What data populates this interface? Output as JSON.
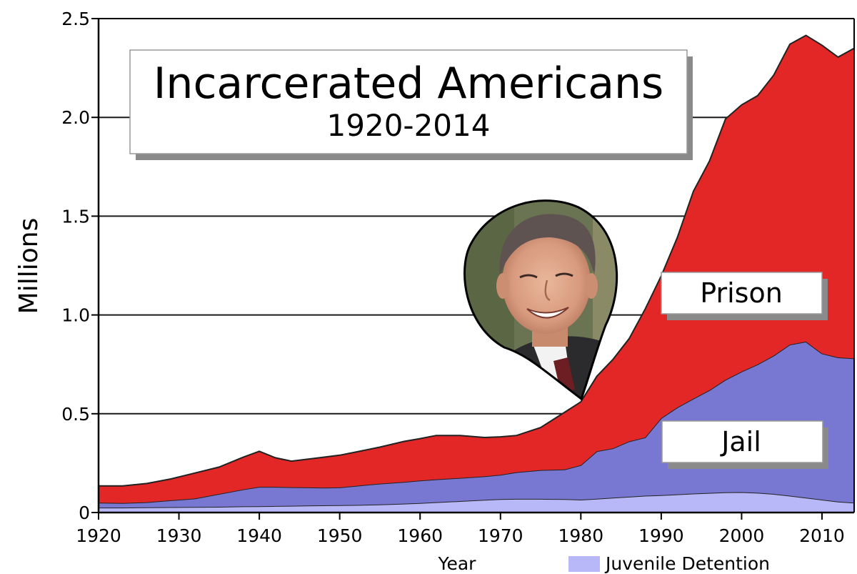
{
  "chart_data": {
    "type": "area",
    "stacked": true,
    "title": "Incarcerated Americans",
    "subtitle": "1920-2014",
    "xlabel": "Year",
    "ylabel": "Millions",
    "xlim": [
      1920,
      2014
    ],
    "ylim": [
      0,
      2.5
    ],
    "grid": true,
    "x_ticks": [
      "1920",
      "1930",
      "1940",
      "1950",
      "1960",
      "1970",
      "1980",
      "1990",
      "2000",
      "2010"
    ],
    "y_ticks": [
      "0",
      "0.5",
      "1.0",
      "1.5",
      "2.0",
      "2.5"
    ],
    "legend": [
      {
        "name": "Juvenile Detention",
        "color": "#b8b8f8",
        "placement": "bottom-right"
      }
    ],
    "annotations": [
      {
        "type": "portrait-callout",
        "x": 1980
      }
    ],
    "x": [
      1920,
      1923,
      1926,
      1929,
      1932,
      1935,
      1938,
      1940,
      1942,
      1944,
      1946,
      1948,
      1950,
      1952,
      1955,
      1958,
      1960,
      1962,
      1965,
      1968,
      1970,
      1972,
      1975,
      1978,
      1980,
      1982,
      1984,
      1986,
      1988,
      1990,
      1992,
      1994,
      1996,
      1998,
      2000,
      2002,
      2004,
      2006,
      2008,
      2010,
      2012,
      2014
    ],
    "series": [
      {
        "name": "Juvenile Detention",
        "color": "#b8b8f8",
        "values": [
          0.025,
          0.025,
          0.026,
          0.027,
          0.028,
          0.029,
          0.031,
          0.032,
          0.033,
          0.034,
          0.035,
          0.036,
          0.037,
          0.038,
          0.041,
          0.045,
          0.048,
          0.052,
          0.058,
          0.064,
          0.068,
          0.069,
          0.069,
          0.068,
          0.065,
          0.07,
          0.075,
          0.08,
          0.085,
          0.088,
          0.092,
          0.096,
          0.099,
          0.102,
          0.103,
          0.1,
          0.094,
          0.085,
          0.075,
          0.065,
          0.055,
          0.05
        ]
      },
      {
        "name": "Jail",
        "color": "#7878d2",
        "values": [
          0.025,
          0.023,
          0.026,
          0.035,
          0.043,
          0.065,
          0.086,
          0.098,
          0.097,
          0.094,
          0.092,
          0.09,
          0.09,
          0.097,
          0.105,
          0.11,
          0.114,
          0.116,
          0.117,
          0.119,
          0.123,
          0.135,
          0.146,
          0.15,
          0.175,
          0.24,
          0.25,
          0.28,
          0.295,
          0.39,
          0.44,
          0.48,
          0.52,
          0.57,
          0.61,
          0.65,
          0.7,
          0.765,
          0.79,
          0.74,
          0.73,
          0.73
        ]
      },
      {
        "name": "Prison",
        "color": "#e32626",
        "values": [
          0.085,
          0.087,
          0.095,
          0.108,
          0.129,
          0.136,
          0.163,
          0.18,
          0.147,
          0.132,
          0.143,
          0.154,
          0.163,
          0.171,
          0.185,
          0.205,
          0.212,
          0.222,
          0.215,
          0.197,
          0.192,
          0.186,
          0.215,
          0.29,
          0.32,
          0.38,
          0.45,
          0.52,
          0.65,
          0.72,
          0.86,
          1.05,
          1.16,
          1.32,
          1.35,
          1.36,
          1.42,
          1.52,
          1.55,
          1.56,
          1.52,
          1.57
        ]
      }
    ],
    "series_labels": [
      "Prison",
      "Jail"
    ]
  }
}
